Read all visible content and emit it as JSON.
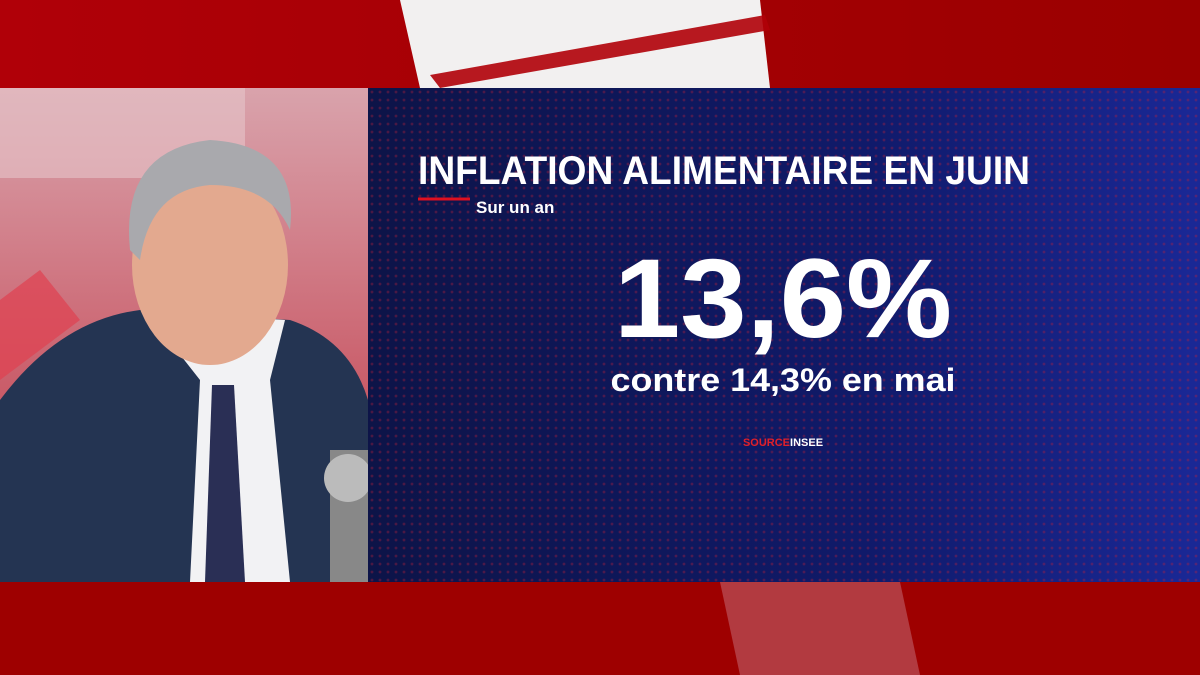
{
  "graphic": {
    "title": "INFLATION ALIMENTAIRE EN JUIN",
    "subtitle": "Sur un an",
    "main_figure": "13,6%",
    "comparison": "contre 14,3% en mai",
    "source_label": "SOURCE",
    "source_name": "INSEE"
  }
}
